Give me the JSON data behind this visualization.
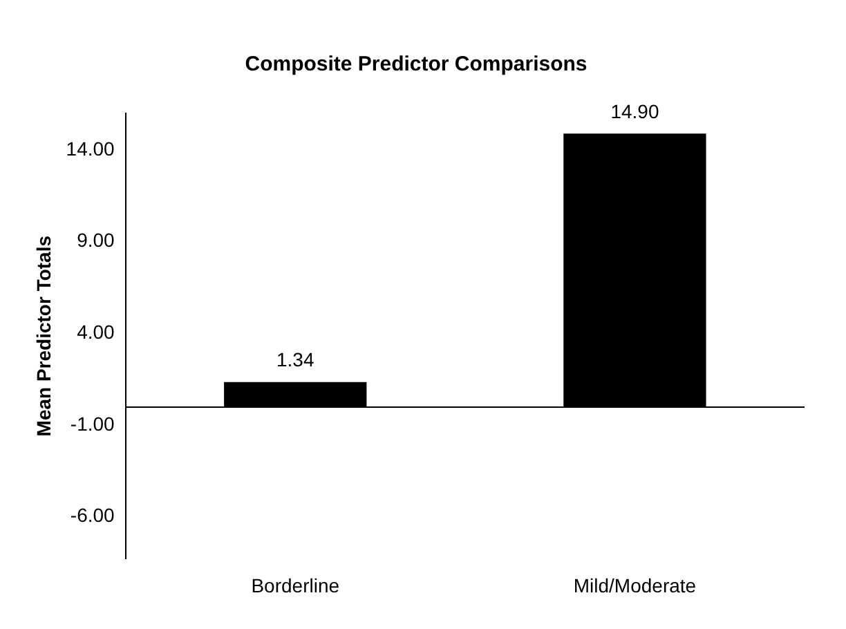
{
  "chart_data": {
    "type": "bar",
    "title": "Composite Predictor Comparisons",
    "ylabel": "Mean Predictor Totals",
    "categories": [
      "Borderline",
      "Mild/Moderate"
    ],
    "values": [
      1.34,
      14.9
    ],
    "color": "#000000",
    "value_labels": [
      "1.34",
      "14.90"
    ],
    "ylim": [
      -8.3,
      16
    ],
    "yticks": [
      {
        "value": -6,
        "label": "-6.00"
      },
      {
        "value": -1,
        "label": "-1.00"
      },
      {
        "value": 4,
        "label": "4.00"
      },
      {
        "value": 9,
        "label": "9.00"
      },
      {
        "value": 14,
        "label": "14.00"
      }
    ],
    "grid": false,
    "legend": false
  }
}
